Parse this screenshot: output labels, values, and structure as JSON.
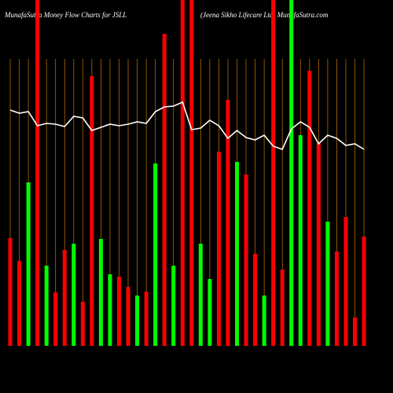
{
  "chart_data": {
    "type": "bar",
    "title": "MunafaSutra  Money Flow  Charts for JSLL",
    "subtitle": "(Jeena  Sikho  Lifecare   Ltd) MunafaSutra.com",
    "categories": [
      null,
      null,
      null,
      null,
      null,
      null,
      null,
      null,
      null,
      null,
      null,
      null,
      null,
      null,
      null,
      null,
      null,
      null,
      null,
      null,
      null,
      null,
      null,
      null,
      null,
      null,
      null,
      null,
      null,
      null,
      null,
      null,
      null,
      null,
      null,
      null,
      null,
      null,
      null,
      null
    ],
    "series": [
      {
        "values": [
          137,
          108,
          208,
          440,
          102,
          68,
          122,
          130,
          56,
          343,
          136,
          91,
          88,
          75,
          64,
          69,
          232,
          397,
          102,
          440,
          440,
          130,
          85,
          247,
          313,
          234,
          218,
          117,
          64,
          440,
          97,
          440,
          268,
          350,
          258,
          158,
          120,
          164,
          36,
          139
        ],
        "colors": [
          "#ff0000",
          "#ff0000",
          "#00ff00",
          "#ff0000",
          "#00ff00",
          "#ff0000",
          "#ff0000",
          "#00ff00",
          "#ff0000",
          "#ff0000",
          "#00ff00",
          "#00ff00",
          "#ff0000",
          "#ff0000",
          "#00ff00",
          "#ff0000",
          "#00ff00",
          "#ff0000",
          "#00ff00",
          "#ff0000",
          "#ff0000",
          "#00ff00",
          "#00ff00",
          "#ff0000",
          "#ff0000",
          "#00ff00",
          "#ff0000",
          "#ff0000",
          "#00ff00",
          "#ff0000",
          "#ff0000",
          "#00ff00",
          "#00ff00",
          "#ff0000",
          "#ff0000",
          "#00ff00",
          "#ff0000",
          "#ff0000",
          "#ff0000",
          "#ff0000"
        ]
      },
      {
        "type": "line",
        "color": "#ffffff",
        "values": [
          300,
          296,
          298,
          280,
          283,
          282,
          279,
          292,
          290,
          274,
          278,
          282,
          280,
          282,
          285,
          283,
          298,
          304,
          305,
          310,
          275,
          277,
          287,
          280,
          264,
          274,
          265,
          262,
          268,
          254,
          250,
          276,
          285,
          278,
          257,
          268,
          264,
          255,
          257,
          250
        ]
      }
    ],
    "ylim": [
      0,
      440
    ]
  }
}
